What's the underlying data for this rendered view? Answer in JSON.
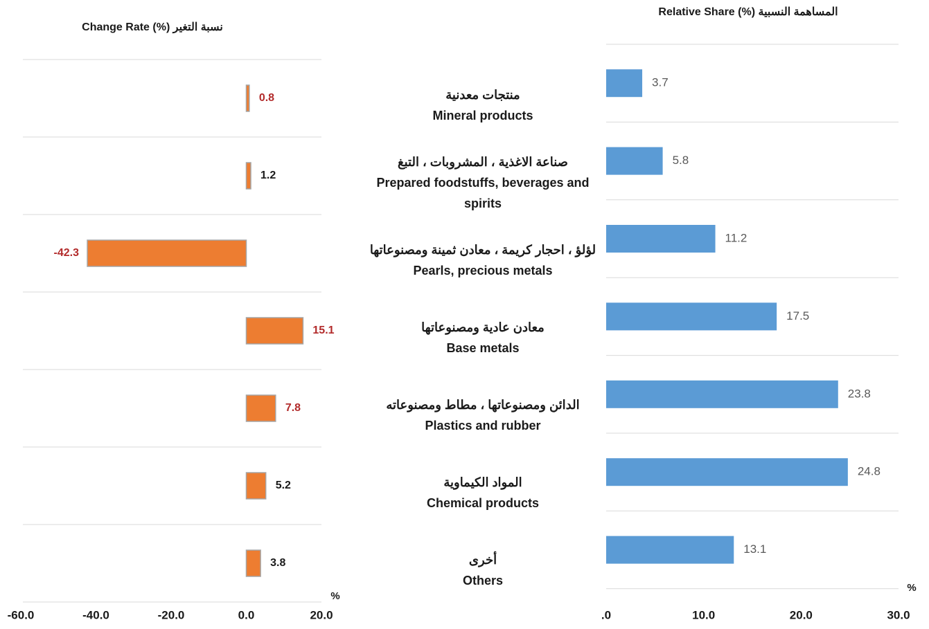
{
  "chart_data": [
    {
      "type": "barh",
      "title": "Relative Share (%) المساهمة النسبية",
      "categories": [
        "Mineral products",
        "Prepared foodstuffs, beverages and spirits",
        "Pearls, precious metals",
        "Base metals",
        "Plastics and rubber",
        "Chemical products",
        "Others"
      ],
      "categories_ar": [
        "منتجات معدنية",
        "صناعة الاغذية ، المشروبات ، التبغ",
        "لؤلؤ ، احجار كريمة ، معادن ثمينة ومصنوعاتها",
        "معادن عادية ومصنوعاتها",
        "الدائن ومصنوعاتها ، مطاط ومصنوعاته",
        "المواد الكيماوية",
        "أخرى"
      ],
      "values": [
        3.7,
        5.8,
        11.2,
        17.5,
        23.8,
        24.8,
        13.1
      ],
      "color": "#5b9bd5",
      "label_color": "#595959",
      "xlim": [
        0,
        30
      ],
      "xticks": [
        {
          "value": 0,
          "label": ".0"
        },
        {
          "value": 10,
          "label": "10.0"
        },
        {
          "value": 20,
          "label": "20.0"
        },
        {
          "value": 30,
          "label": "30.0"
        }
      ],
      "x_unit": "%",
      "grid": true
    },
    {
      "type": "barh",
      "title": "Change Rate (%) نسبة التغير",
      "values": [
        0.8,
        1.2,
        -42.3,
        15.1,
        7.8,
        5.2,
        3.8
      ],
      "color": "#ed7d31",
      "label_colors": [
        "#b22a2a",
        "#1a1a1a",
        "#b22a2a",
        "#b22a2a",
        "#b22a2a",
        "#1a1a1a",
        "#1a1a1a"
      ],
      "xlim": [
        -60,
        20
      ],
      "xticks": [
        {
          "value": -60,
          "label": "-60.0"
        },
        {
          "value": -40,
          "label": "-40.0"
        },
        {
          "value": -20,
          "label": "-20.0"
        },
        {
          "value": 0,
          "label": "0.0"
        },
        {
          "value": 20,
          "label": "20.0"
        }
      ],
      "x_unit": "%",
      "grid": true
    }
  ]
}
